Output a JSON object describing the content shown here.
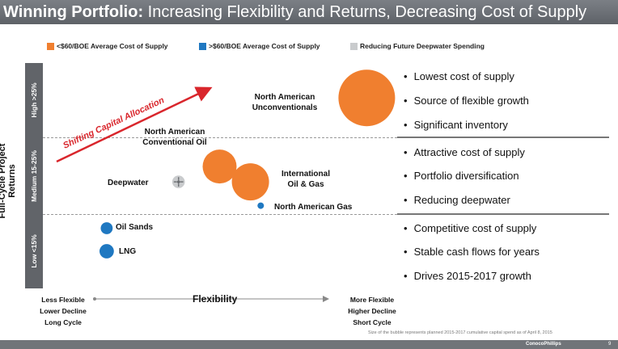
{
  "title": {
    "bold": "Winning Portfolio:",
    "rest": " Increasing Flexibility and Returns, Decreasing Cost of Supply"
  },
  "legend": [
    {
      "label": "<$60/BOE Average Cost of Supply",
      "color": "#f07f2f"
    },
    {
      "label": ">$60/BOE Average Cost of Supply",
      "color": "#1f78c1"
    },
    {
      "label": "Reducing Future Deepwater Spending",
      "color": "#c9cbcd"
    }
  ],
  "chart_data": {
    "type": "scatter",
    "ylabel": "Full-Cycle Project Returns",
    "xlabel": "Flexibility",
    "y_bands": [
      "High >25%",
      "Medium 15-25%",
      "Low <15%"
    ],
    "x_left": [
      "Less Flexible",
      "Lower Decline",
      "Long Cycle"
    ],
    "x_right": [
      "More Flexible",
      "Higher Decline",
      "Short Cycle"
    ],
    "arrow_label": "Shifting Capital Allocation",
    "points": [
      {
        "name": "North American Unconventionals",
        "label": [
          "North American",
          "Unconventionals"
        ],
        "color": "orange",
        "flex": 0.93,
        "band": "high",
        "size": 1.0
      },
      {
        "name": "North American Conventional Oil",
        "label": [
          "North American",
          "Conventional Oil"
        ],
        "color": "orange",
        "flex": 0.5,
        "band": "medium",
        "size": 0.36
      },
      {
        "name": "International Oil & Gas",
        "label": [
          "International",
          "Oil & Gas"
        ],
        "color": "orange",
        "flex": 0.59,
        "band": "medium",
        "size": 0.43
      },
      {
        "name": "North American Gas",
        "label": [
          "North American Gas"
        ],
        "color": "blue",
        "flex": 0.62,
        "band": "medium",
        "size": 0.013
      },
      {
        "name": "Deepwater",
        "label": [
          "Deepwater"
        ],
        "color": "gray",
        "flex": 0.38,
        "band": "medium",
        "size": 0.05
      },
      {
        "name": "Oil Sands",
        "label": [
          "Oil Sands"
        ],
        "color": "blue",
        "flex": 0.17,
        "band": "low",
        "size": 0.045
      },
      {
        "name": "LNG",
        "label": [
          "LNG"
        ],
        "color": "blue",
        "flex": 0.17,
        "band": "low",
        "size": 0.065
      }
    ]
  },
  "bullets": {
    "high": [
      "Lowest cost of supply",
      "Source of flexible growth",
      "Significant inventory"
    ],
    "medium": [
      "Attractive cost of supply",
      "Portfolio diversification",
      "Reducing deepwater"
    ],
    "low": [
      "Competitive cost of supply",
      "Stable cash flows for years",
      "Drives 2015-2017 growth"
    ]
  },
  "footnote": "Size of the bubble represents planned 2015-2017 cumulative capital spend as of April 8, 2015",
  "page_number": "9",
  "brand": "ConocoPhillips"
}
